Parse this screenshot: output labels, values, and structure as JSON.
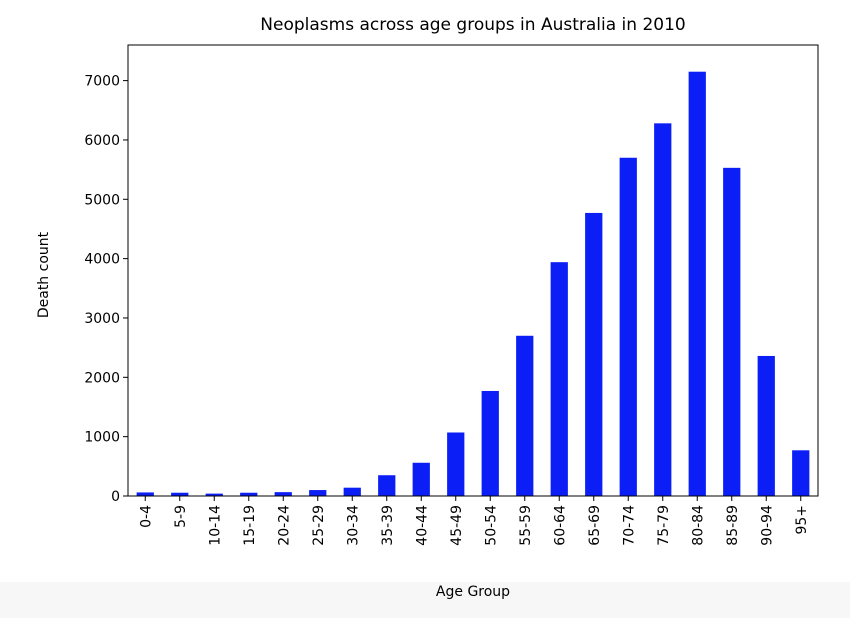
{
  "chart_data": {
    "type": "bar",
    "title": "Neoplasms across age groups in Australia in 2010",
    "x_label": "Age Group",
    "y_label": "Death count",
    "categories": [
      "0-4",
      "5-9",
      "10-14",
      "15-19",
      "20-24",
      "25-29",
      "30-34",
      "35-39",
      "40-44",
      "45-49",
      "50-54",
      "55-59",
      "60-64",
      "65-69",
      "70-74",
      "75-79",
      "80-84",
      "85-89",
      "90-94",
      "95+"
    ],
    "values": [
      60,
      55,
      40,
      55,
      65,
      100,
      140,
      350,
      560,
      1070,
      1770,
      2700,
      3940,
      4770,
      5700,
      6280,
      7150,
      5530,
      2360,
      770
    ],
    "color": "#0a1ef5",
    "ylim": [
      0,
      7600
    ],
    "yticks": [
      0,
      1000,
      2000,
      3000,
      4000,
      5000,
      6000,
      7000
    ],
    "grid": false
  }
}
